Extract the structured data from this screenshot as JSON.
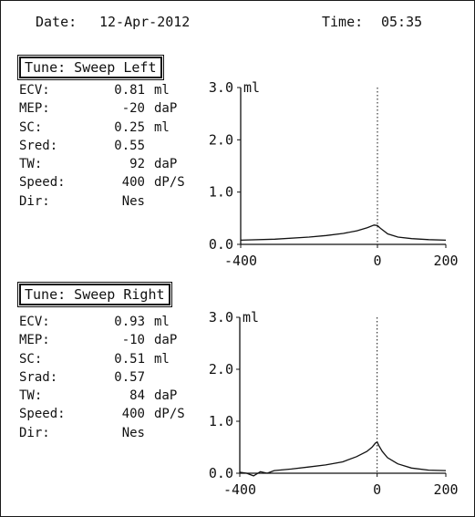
{
  "header": {
    "date_label": "Date:",
    "date_value": "12-Apr-2012",
    "time_label": "Time:",
    "time_value": "05:35"
  },
  "panels": [
    {
      "title": "Tune: Sweep Left",
      "metrics": [
        {
          "label": "ECV:",
          "value": "0.81",
          "unit": "ml"
        },
        {
          "label": "MEP:",
          "value": "-20",
          "unit": "daP"
        },
        {
          "label": "SC:",
          "value": "0.25",
          "unit": "ml"
        },
        {
          "label": "Sred:",
          "value": "0.55",
          "unit": ""
        },
        {
          "label": "TW:",
          "value": "92",
          "unit": "daP"
        },
        {
          "label": "Speed:",
          "value": "400",
          "unit": "dP/S"
        },
        {
          "label": "Dir:",
          "value": "Nes",
          "unit": ""
        }
      ],
      "chart_data": {
        "type": "line",
        "ylabel": "ml",
        "ylim": [
          0,
          3
        ],
        "xlim": [
          -400,
          200
        ],
        "xticks": [
          "-400",
          "0",
          "200"
        ],
        "yticks": [
          "3.0",
          "2.0",
          "1.0",
          "0.0"
        ],
        "marker_x": 0,
        "x": [
          -400,
          -300,
          -200,
          -150,
          -100,
          -60,
          -30,
          -10,
          0,
          10,
          30,
          60,
          100,
          150,
          200
        ],
        "y": [
          0.08,
          0.1,
          0.14,
          0.17,
          0.21,
          0.26,
          0.32,
          0.37,
          0.36,
          0.3,
          0.2,
          0.14,
          0.11,
          0.09,
          0.08
        ]
      }
    },
    {
      "title": "Tune: Sweep Right",
      "metrics": [
        {
          "label": "ECV:",
          "value": "0.93",
          "unit": "ml"
        },
        {
          "label": "MEP:",
          "value": "-10",
          "unit": "daP"
        },
        {
          "label": "SC:",
          "value": "0.51",
          "unit": "ml"
        },
        {
          "label": "Srad:",
          "value": "0.57",
          "unit": ""
        },
        {
          "label": "TW:",
          "value": "84",
          "unit": "daP"
        },
        {
          "label": "Speed:",
          "value": "400",
          "unit": "dP/S"
        },
        {
          "label": "Dir:",
          "value": "Nes",
          "unit": ""
        }
      ],
      "chart_data": {
        "type": "line",
        "ylabel": "ml",
        "ylim": [
          0,
          3
        ],
        "xlim": [
          -400,
          200
        ],
        "xticks": [
          "-400",
          "0",
          "200"
        ],
        "yticks": [
          "3.0",
          "2.0",
          "1.0",
          "0.0"
        ],
        "marker_x": 0,
        "x": [
          -400,
          -380,
          -360,
          -340,
          -320,
          -300,
          -250,
          -200,
          -150,
          -100,
          -60,
          -30,
          -15,
          -5,
          0,
          5,
          15,
          30,
          60,
          100,
          150,
          200
        ],
        "y": [
          0.02,
          0.0,
          -0.05,
          0.03,
          0.0,
          0.05,
          0.08,
          0.12,
          0.16,
          0.22,
          0.32,
          0.42,
          0.5,
          0.58,
          0.6,
          0.53,
          0.42,
          0.3,
          0.18,
          0.1,
          0.06,
          0.05
        ]
      }
    }
  ]
}
